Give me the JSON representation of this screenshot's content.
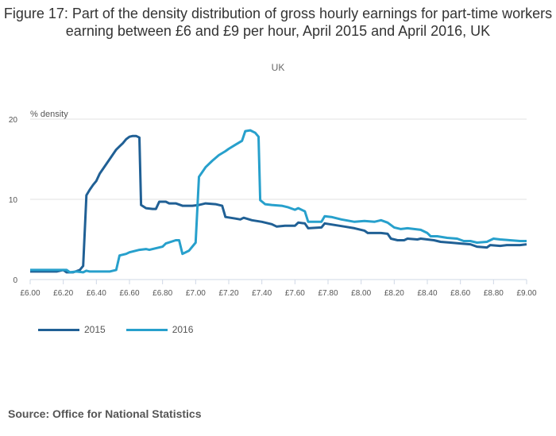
{
  "chart_data": {
    "type": "line",
    "title": "Figure 17: Part of the density distribution of gross hourly earnings for part-time workers earning between £6 and £9 per hour, April 2015 and April 2016, UK",
    "subtitle": "UK",
    "ylabel": "% density",
    "xlabel": "",
    "xlim": [
      6.0,
      9.0
    ],
    "ylim": [
      0,
      20
    ],
    "yticks": [
      "0",
      "10",
      "20"
    ],
    "xticks": [
      "£6.00",
      "£6.20",
      "£6.40",
      "£6.60",
      "£6.80",
      "£7.00",
      "£7.20",
      "£7.40",
      "£7.60",
      "£7.80",
      "£8.00",
      "£8.20",
      "£8.40",
      "£8.60",
      "£8.80",
      "£9.00"
    ],
    "grid": true,
    "legend_position": "bottom-left",
    "series": [
      {
        "name": "2015",
        "color": "#206095",
        "points": [
          [
            6.0,
            1.0
          ],
          [
            6.1,
            1.0
          ],
          [
            6.16,
            1.0
          ],
          [
            6.2,
            1.2
          ],
          [
            6.22,
            0.9
          ],
          [
            6.26,
            0.9
          ],
          [
            6.3,
            1.2
          ],
          [
            6.32,
            1.7
          ],
          [
            6.34,
            10.5
          ],
          [
            6.36,
            11.2
          ],
          [
            6.38,
            11.8
          ],
          [
            6.4,
            12.3
          ],
          [
            6.42,
            13.2
          ],
          [
            6.44,
            13.8
          ],
          [
            6.46,
            14.4
          ],
          [
            6.48,
            15.0
          ],
          [
            6.5,
            15.6
          ],
          [
            6.52,
            16.2
          ],
          [
            6.54,
            16.6
          ],
          [
            6.56,
            17.0
          ],
          [
            6.58,
            17.5
          ],
          [
            6.6,
            17.8
          ],
          [
            6.62,
            17.9
          ],
          [
            6.64,
            17.9
          ],
          [
            6.66,
            17.7
          ],
          [
            6.67,
            9.3
          ],
          [
            6.7,
            8.9
          ],
          [
            6.74,
            8.8
          ],
          [
            6.76,
            8.8
          ],
          [
            6.78,
            9.7
          ],
          [
            6.82,
            9.7
          ],
          [
            6.84,
            9.5
          ],
          [
            6.88,
            9.5
          ],
          [
            6.92,
            9.2
          ],
          [
            6.98,
            9.2
          ],
          [
            7.02,
            9.3
          ],
          [
            7.06,
            9.5
          ],
          [
            7.12,
            9.4
          ],
          [
            7.16,
            9.2
          ],
          [
            7.18,
            7.8
          ],
          [
            7.24,
            7.6
          ],
          [
            7.27,
            7.5
          ],
          [
            7.29,
            7.7
          ],
          [
            7.34,
            7.4
          ],
          [
            7.4,
            7.2
          ],
          [
            7.44,
            7.0
          ],
          [
            7.46,
            6.9
          ],
          [
            7.49,
            6.6
          ],
          [
            7.54,
            6.7
          ],
          [
            7.6,
            6.7
          ],
          [
            7.62,
            7.1
          ],
          [
            7.66,
            7.0
          ],
          [
            7.68,
            6.4
          ],
          [
            7.76,
            6.5
          ],
          [
            7.78,
            7.0
          ],
          [
            7.84,
            6.8
          ],
          [
            7.9,
            6.6
          ],
          [
            7.96,
            6.4
          ],
          [
            8.02,
            6.1
          ],
          [
            8.04,
            5.8
          ],
          [
            8.12,
            5.8
          ],
          [
            8.16,
            5.7
          ],
          [
            8.18,
            5.1
          ],
          [
            8.22,
            4.9
          ],
          [
            8.26,
            4.9
          ],
          [
            8.28,
            5.1
          ],
          [
            8.34,
            5.0
          ],
          [
            8.36,
            5.1
          ],
          [
            8.44,
            4.9
          ],
          [
            8.48,
            4.7
          ],
          [
            8.54,
            4.6
          ],
          [
            8.6,
            4.5
          ],
          [
            8.66,
            4.4
          ],
          [
            8.7,
            4.1
          ],
          [
            8.76,
            4.0
          ],
          [
            8.78,
            4.3
          ],
          [
            8.84,
            4.2
          ],
          [
            8.88,
            4.3
          ],
          [
            8.96,
            4.3
          ],
          [
            9.0,
            4.4
          ]
        ]
      },
      {
        "name": "2016",
        "color": "#27a0cc",
        "points": [
          [
            6.0,
            1.2
          ],
          [
            6.22,
            1.2
          ],
          [
            6.24,
            0.9
          ],
          [
            6.28,
            1.0
          ],
          [
            6.32,
            0.9
          ],
          [
            6.34,
            1.1
          ],
          [
            6.36,
            1.0
          ],
          [
            6.48,
            1.0
          ],
          [
            6.52,
            1.2
          ],
          [
            6.54,
            3.0
          ],
          [
            6.58,
            3.2
          ],
          [
            6.6,
            3.4
          ],
          [
            6.66,
            3.7
          ],
          [
            6.7,
            3.8
          ],
          [
            6.72,
            3.7
          ],
          [
            6.8,
            4.1
          ],
          [
            6.82,
            4.5
          ],
          [
            6.88,
            4.9
          ],
          [
            6.9,
            4.9
          ],
          [
            6.92,
            3.2
          ],
          [
            6.96,
            3.6
          ],
          [
            7.0,
            4.6
          ],
          [
            7.02,
            12.8
          ],
          [
            7.06,
            14.0
          ],
          [
            7.1,
            14.8
          ],
          [
            7.14,
            15.5
          ],
          [
            7.18,
            16.0
          ],
          [
            7.2,
            16.3
          ],
          [
            7.24,
            16.8
          ],
          [
            7.28,
            17.3
          ],
          [
            7.3,
            18.5
          ],
          [
            7.33,
            18.6
          ],
          [
            7.36,
            18.3
          ],
          [
            7.38,
            17.8
          ],
          [
            7.39,
            9.9
          ],
          [
            7.42,
            9.4
          ],
          [
            7.46,
            9.3
          ],
          [
            7.52,
            9.2
          ],
          [
            7.56,
            9.0
          ],
          [
            7.6,
            8.7
          ],
          [
            7.62,
            8.9
          ],
          [
            7.66,
            8.5
          ],
          [
            7.68,
            7.2
          ],
          [
            7.76,
            7.2
          ],
          [
            7.78,
            7.9
          ],
          [
            7.82,
            7.8
          ],
          [
            7.88,
            7.5
          ],
          [
            7.96,
            7.2
          ],
          [
            8.02,
            7.3
          ],
          [
            8.08,
            7.2
          ],
          [
            8.12,
            7.4
          ],
          [
            8.16,
            7.1
          ],
          [
            8.2,
            6.5
          ],
          [
            8.24,
            6.3
          ],
          [
            8.28,
            6.4
          ],
          [
            8.36,
            6.2
          ],
          [
            8.4,
            5.8
          ],
          [
            8.42,
            5.4
          ],
          [
            8.46,
            5.4
          ],
          [
            8.52,
            5.2
          ],
          [
            8.58,
            5.1
          ],
          [
            8.62,
            4.8
          ],
          [
            8.66,
            4.8
          ],
          [
            8.7,
            4.6
          ],
          [
            8.76,
            4.7
          ],
          [
            8.8,
            5.1
          ],
          [
            8.84,
            5.0
          ],
          [
            8.9,
            4.9
          ],
          [
            8.96,
            4.8
          ],
          [
            9.0,
            4.8
          ]
        ]
      }
    ]
  },
  "source": "Source: Office for National Statistics"
}
